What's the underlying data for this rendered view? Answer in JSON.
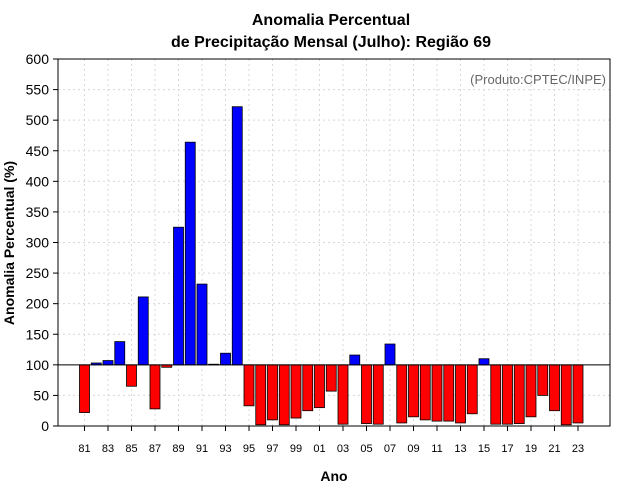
{
  "chart_data": {
    "type": "bar",
    "title_line1": "Anomalia Percentual",
    "title_line2": "de Precipitação Mensal (Julho): Região 69",
    "xlabel": "Ano",
    "ylabel": "Anomalia Percentual (%)",
    "credit": "(Produto:CPTEC/INPE)",
    "ylim": [
      0,
      600
    ],
    "yticks": [
      0,
      50,
      100,
      150,
      200,
      250,
      300,
      350,
      400,
      450,
      500,
      550,
      600
    ],
    "baseline": 100,
    "colors": {
      "above": "#0000ff",
      "below": "#ff0000",
      "edge": "#000000",
      "baseline": "#000000"
    },
    "categories": [
      "81",
      "82",
      "83",
      "84",
      "85",
      "86",
      "87",
      "88",
      "89",
      "90",
      "91",
      "92",
      "93",
      "94",
      "95",
      "96",
      "97",
      "98",
      "99",
      "00",
      "01",
      "02",
      "03",
      "04",
      "05",
      "06",
      "07",
      "08",
      "09",
      "10",
      "11",
      "12",
      "13",
      "14",
      "15",
      "16",
      "17",
      "18",
      "19",
      "20",
      "21",
      "22",
      "23"
    ],
    "tick_labels": [
      "81",
      "83",
      "85",
      "87",
      "89",
      "91",
      "93",
      "95",
      "97",
      "99",
      "01",
      "03",
      "05",
      "07",
      "09",
      "11",
      "13",
      "15",
      "17",
      "19",
      "21",
      "23"
    ],
    "values": [
      22,
      103,
      107,
      138,
      65,
      211,
      28,
      96,
      325,
      464,
      232,
      101,
      119,
      522,
      33,
      2,
      10,
      2,
      13,
      25,
      30,
      57,
      3,
      116,
      4,
      3,
      134,
      5,
      15,
      10,
      8,
      8,
      5,
      20,
      110,
      3,
      3,
      4,
      15,
      50,
      25,
      2,
      5
    ]
  }
}
